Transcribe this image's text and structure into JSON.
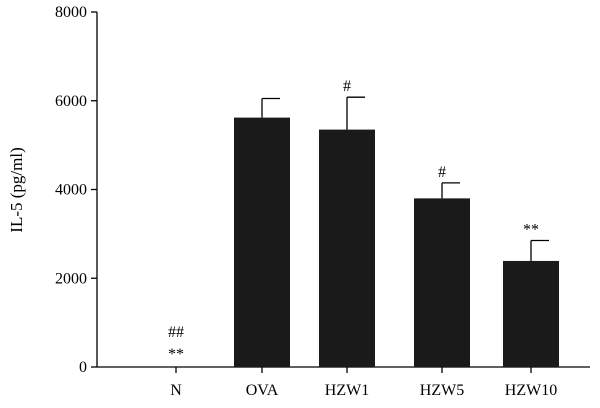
{
  "chart_data": {
    "type": "bar",
    "title": "",
    "xlabel": "",
    "ylabel": "IL-5 (pg/ml)",
    "ylim": [
      0,
      8000
    ],
    "yticks": [
      0,
      2000,
      4000,
      6000,
      8000
    ],
    "categories": [
      "N",
      "OVA",
      "HZW1",
      "HZW5",
      "HZW10"
    ],
    "values": [
      0,
      5620,
      5350,
      3800,
      2390
    ],
    "errors": [
      0,
      430,
      730,
      350,
      460
    ],
    "annotations": [
      [
        "##",
        "**"
      ],
      [],
      [
        "#"
      ],
      [
        "#"
      ],
      [
        "**"
      ]
    ],
    "bar_color": "#1a1a1a",
    "grid": false
  }
}
